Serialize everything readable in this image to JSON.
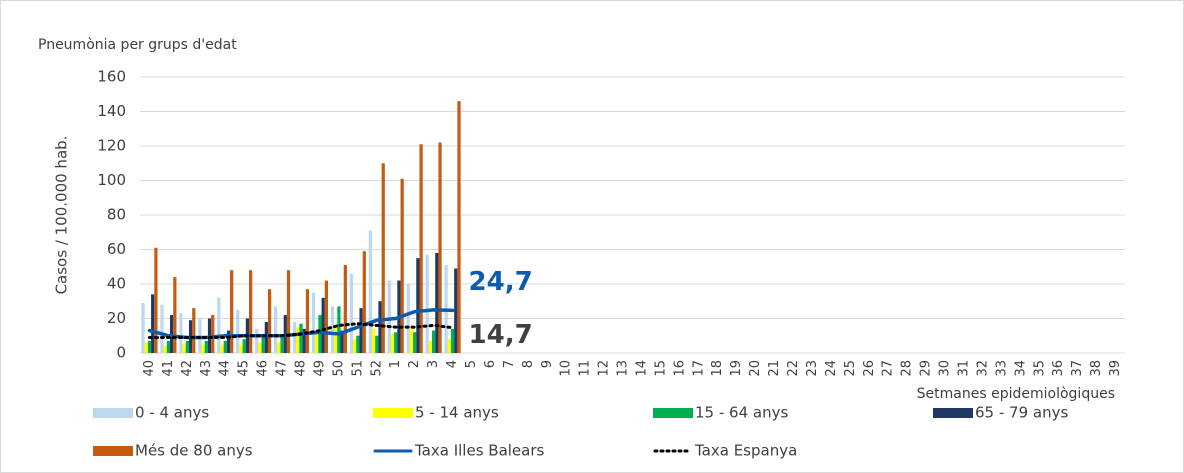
{
  "chart_data": {
    "type": "bar",
    "title": "Pneumònia per grups d'edat",
    "y_label": "Casos / 100.000 hab.",
    "x_label": "Setmanes epidemiològiques",
    "categories": [
      "40",
      "41",
      "42",
      "43",
      "44",
      "45",
      "46",
      "47",
      "48",
      "49",
      "50",
      "51",
      "52",
      "1",
      "2",
      "3",
      "4",
      "5",
      "6",
      "7",
      "8",
      "9",
      "10",
      "11",
      "12",
      "13",
      "14",
      "15",
      "16",
      "17",
      "18",
      "19",
      "20",
      "21",
      "22",
      "23",
      "24",
      "25",
      "26",
      "27",
      "28",
      "29",
      "30",
      "31",
      "32",
      "33",
      "34",
      "35",
      "36",
      "37",
      "38",
      "39"
    ],
    "ylim": [
      0,
      160
    ],
    "yticks": [
      0,
      20,
      40,
      60,
      80,
      100,
      120,
      140,
      160
    ],
    "grid": true,
    "legend": "bottom",
    "series": [
      {
        "name": "0 - 4 anys",
        "type": "bar",
        "color": "#bdd7ee",
        "values": [
          29,
          28,
          23,
          20,
          32,
          25,
          14,
          27,
          18,
          35,
          27,
          46,
          71,
          42,
          40,
          57,
          51,
          null,
          null,
          null,
          null,
          null,
          null,
          null,
          null,
          null,
          null,
          null,
          null,
          null,
          null,
          null,
          null,
          null,
          null,
          null,
          null,
          null,
          null,
          null,
          null,
          null,
          null,
          null,
          null,
          null,
          null,
          null,
          null,
          null,
          null,
          null
        ]
      },
      {
        "name": "5 - 14 anys",
        "type": "bar",
        "color": "#ffff00",
        "values": [
          6,
          4,
          5,
          5,
          5,
          5,
          6,
          6,
          15,
          13,
          16,
          8,
          14,
          11,
          14,
          7,
          8,
          null,
          null,
          null,
          null,
          null,
          null,
          null,
          null,
          null,
          null,
          null,
          null,
          null,
          null,
          null,
          null,
          null,
          null,
          null,
          null,
          null,
          null,
          null,
          null,
          null,
          null,
          null,
          null,
          null,
          null,
          null,
          null,
          null,
          null,
          null
        ]
      },
      {
        "name": "15 - 64 anys",
        "type": "bar",
        "color": "#00b050",
        "values": [
          7,
          7,
          7,
          7,
          7,
          8,
          9,
          10,
          17,
          22,
          27,
          10,
          10,
          12,
          12,
          13,
          14,
          null,
          null,
          null,
          null,
          null,
          null,
          null,
          null,
          null,
          null,
          null,
          null,
          null,
          null,
          null,
          null,
          null,
          null,
          null,
          null,
          null,
          null,
          null,
          null,
          null,
          null,
          null,
          null,
          null,
          null,
          null,
          null,
          null,
          null,
          null
        ]
      },
      {
        "name": "65 - 79 anys",
        "type": "bar",
        "color": "#1f3864",
        "values": [
          34,
          22,
          19,
          20,
          13,
          20,
          18,
          22,
          14,
          32,
          13,
          26,
          30,
          42,
          55,
          58,
          49,
          null,
          null,
          null,
          null,
          null,
          null,
          null,
          null,
          null,
          null,
          null,
          null,
          null,
          null,
          null,
          null,
          null,
          null,
          null,
          null,
          null,
          null,
          null,
          null,
          null,
          null,
          null,
          null,
          null,
          null,
          null,
          null,
          null,
          null,
          null
        ]
      },
      {
        "name": "Més de 80 anys",
        "type": "bar",
        "color": "#c55a11",
        "values": [
          61,
          44,
          26,
          22,
          48,
          48,
          37,
          48,
          37,
          42,
          51,
          59,
          110,
          101,
          121,
          122,
          146,
          null,
          null,
          null,
          null,
          null,
          null,
          null,
          null,
          null,
          null,
          null,
          null,
          null,
          null,
          null,
          null,
          null,
          null,
          null,
          null,
          null,
          null,
          null,
          null,
          null,
          null,
          null,
          null,
          null,
          null,
          null,
          null,
          null,
          null,
          null
        ]
      },
      {
        "name": "Taxa Illes Balears",
        "type": "line",
        "style": "solid",
        "color": "#0b5cad",
        "values": [
          13,
          10,
          9,
          9,
          10,
          10,
          10,
          10,
          11,
          12,
          11,
          15,
          19,
          20,
          24,
          25,
          24.7,
          null,
          null,
          null,
          null,
          null,
          null,
          null,
          null,
          null,
          null,
          null,
          null,
          null,
          null,
          null,
          null,
          null,
          null,
          null,
          null,
          null,
          null,
          null,
          null,
          null,
          null,
          null,
          null,
          null,
          null,
          null,
          null,
          null,
          null,
          null
        ],
        "value_labels": [
          null,
          null,
          null,
          null,
          null,
          null,
          null,
          null,
          null,
          null,
          null,
          null,
          null,
          null,
          null,
          null,
          "24,7",
          null,
          null,
          null,
          null,
          null,
          null,
          null,
          null,
          null,
          null,
          null,
          null,
          null,
          null,
          null,
          null,
          null,
          null,
          null,
          null,
          null,
          null,
          null,
          null,
          null,
          null,
          null,
          null,
          null,
          null,
          null,
          null,
          null,
          null,
          null
        ]
      },
      {
        "name": "Taxa Espanya",
        "type": "line",
        "style": "dotted",
        "color": "#000000",
        "label_color": "#404040",
        "values": [
          9,
          9,
          9,
          9,
          9,
          10,
          10,
          10,
          11,
          13,
          16,
          17,
          16,
          15,
          15,
          16,
          14.7,
          null,
          null,
          null,
          null,
          null,
          null,
          null,
          null,
          null,
          null,
          null,
          null,
          null,
          null,
          null,
          null,
          null,
          null,
          null,
          null,
          null,
          null,
          null,
          null,
          null,
          null,
          null,
          null,
          null,
          null,
          null,
          null,
          null,
          null,
          null
        ],
        "value_labels": [
          null,
          null,
          null,
          null,
          null,
          null,
          null,
          null,
          null,
          null,
          null,
          null,
          null,
          null,
          null,
          null,
          "14,7",
          null,
          null,
          null,
          null,
          null,
          null,
          null,
          null,
          null,
          null,
          null,
          null,
          null,
          null,
          null,
          null,
          null,
          null,
          null,
          null,
          null,
          null,
          null,
          null,
          null,
          null,
          null,
          null,
          null,
          null,
          null,
          null,
          null,
          null,
          null
        ]
      }
    ]
  }
}
